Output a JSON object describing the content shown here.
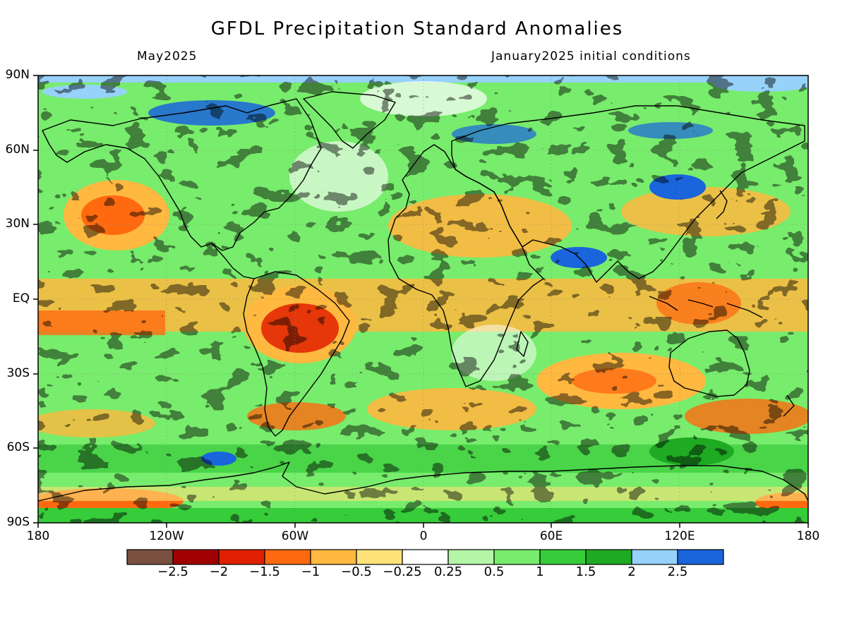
{
  "header": {
    "title": "GFDL Precipitation Standard Anomalies",
    "valid_month": "May2025",
    "initial_conditions": "January2025 initial conditions"
  },
  "axes": {
    "lat_labels": [
      "90N",
      "60N",
      "30N",
      "EQ",
      "30S",
      "60S",
      "90S"
    ],
    "lon_labels": [
      "180",
      "120W",
      "60W",
      "0",
      "60E",
      "120E",
      "180"
    ]
  },
  "colorbar": {
    "labels": [
      "−2.5",
      "−2",
      "−1.5",
      "−1",
      "−0.5",
      "−0.25",
      "0.25",
      "0.5",
      "1",
      "1.5",
      "2",
      "2.5"
    ],
    "colors": [
      "#7a5040",
      "#a00000",
      "#e02000",
      "#ff6a10",
      "#ffb840",
      "#ffe27a",
      "#ffffff",
      "#b4f5a8",
      "#78ec6c",
      "#36cc3a",
      "#1eaa22",
      "#96d2fa",
      "#1a64dc"
    ]
  },
  "colors": {
    "coast": "#000000",
    "frame": "#000000",
    "grid": "#888888"
  }
}
